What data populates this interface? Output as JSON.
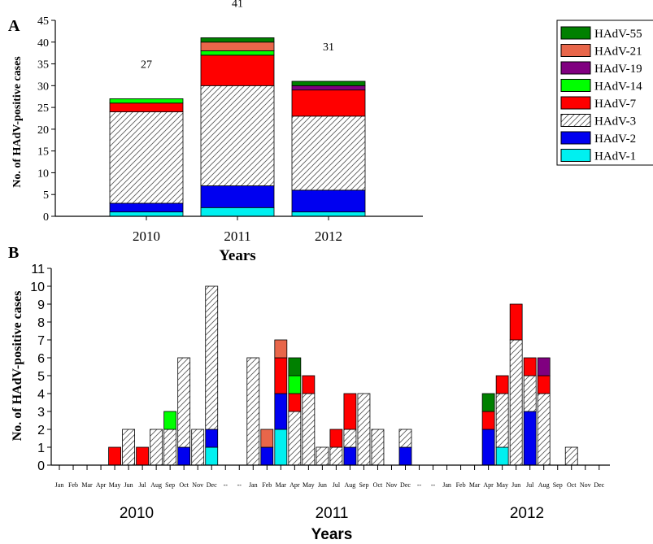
{
  "chart_data": [
    {
      "type": "bar",
      "panel_label": "A",
      "stacked": true,
      "categories": [
        "2010",
        "2011",
        "2012"
      ],
      "totals": [
        "27",
        "41",
        "31"
      ],
      "xlabel": "Years",
      "ylabel": "No. of HAdV-positive cases",
      "ylim": [
        0,
        45
      ],
      "yticks": [
        "0",
        "5",
        "10",
        "15",
        "20",
        "25",
        "30",
        "35",
        "40",
        "45"
      ],
      "legend_position": "top-right",
      "series": [
        {
          "name": "HAdV-1",
          "color": "#00f0f0",
          "values": [
            1,
            2,
            1
          ]
        },
        {
          "name": "HAdV-2",
          "color": "#0000f0",
          "values": [
            2,
            5,
            5
          ]
        },
        {
          "name": "HAdV-3",
          "color": "hatch",
          "values": [
            21,
            23,
            17
          ]
        },
        {
          "name": "HAdV-7",
          "color": "#ff0000",
          "values": [
            2,
            7,
            6
          ]
        },
        {
          "name": "HAdV-14",
          "color": "#00ff00",
          "values": [
            1,
            1,
            0
          ]
        },
        {
          "name": "HAdV-19",
          "color": "#800080",
          "values": [
            0,
            0,
            1
          ]
        },
        {
          "name": "HAdV-21",
          "color": "#e8664a",
          "values": [
            0,
            2,
            0
          ]
        },
        {
          "name": "HAdV-55",
          "color": "#008000",
          "values": [
            0,
            1,
            1
          ]
        }
      ]
    },
    {
      "type": "bar",
      "panel_label": "B",
      "stacked": true,
      "xlabel": "Years",
      "ylabel": "No. of HAdV-positive cases",
      "ylim": [
        0,
        11
      ],
      "yticks": [
        "0",
        "1",
        "2",
        "3",
        "4",
        "5",
        "6",
        "7",
        "8",
        "9",
        "10",
        "11"
      ],
      "month_labels": [
        "Jan",
        "Feb",
        "Mar",
        "Apr",
        "May",
        "Jun",
        "Jul",
        "Aug",
        "Sep",
        "Oct",
        "Nov",
        "Dec",
        "--",
        "--",
        "Jan",
        "Feb",
        "Mar",
        "Apr",
        "May",
        "Jun",
        "Jul",
        "Aug",
        "Sep",
        "Oct",
        "Nov",
        "Dec",
        "--",
        "--",
        "Jan",
        "Feb",
        "Mar",
        "Apr",
        "May",
        "Jun",
        "Jul",
        "Aug",
        "Sep",
        "Oct",
        "Nov",
        "Dec"
      ],
      "year_labels": [
        "2010",
        "2011",
        "2012"
      ],
      "series_order": [
        "HAdV-1",
        "HAdV-2",
        "HAdV-3",
        "HAdV-7",
        "HAdV-14",
        "HAdV-19",
        "HAdV-21",
        "HAdV-55"
      ],
      "months": [
        {
          "i": 4,
          "values": {
            "HAdV-7": 1
          }
        },
        {
          "i": 5,
          "values": {
            "HAdV-3": 2
          }
        },
        {
          "i": 6,
          "values": {
            "HAdV-7": 1
          }
        },
        {
          "i": 7,
          "values": {
            "HAdV-3": 2
          }
        },
        {
          "i": 8,
          "values": {
            "HAdV-3": 2,
            "HAdV-14": 1
          }
        },
        {
          "i": 9,
          "values": {
            "HAdV-2": 1,
            "HAdV-3": 5
          }
        },
        {
          "i": 10,
          "values": {
            "HAdV-3": 2
          }
        },
        {
          "i": 11,
          "values": {
            "HAdV-1": 1,
            "HAdV-2": 1,
            "HAdV-3": 8
          }
        },
        {
          "i": 14,
          "values": {
            "HAdV-3": 6
          }
        },
        {
          "i": 15,
          "values": {
            "HAdV-2": 1,
            "HAdV-21": 1
          }
        },
        {
          "i": 16,
          "values": {
            "HAdV-1": 2,
            "HAdV-2": 2,
            "HAdV-7": 2,
            "HAdV-21": 1
          }
        },
        {
          "i": 17,
          "values": {
            "HAdV-3": 3,
            "HAdV-7": 1,
            "HAdV-14": 1,
            "HAdV-55": 1
          }
        },
        {
          "i": 18,
          "values": {
            "HAdV-3": 4,
            "HAdV-7": 1
          }
        },
        {
          "i": 19,
          "values": {
            "HAdV-3": 1
          }
        },
        {
          "i": 20,
          "values": {
            "HAdV-3": 1,
            "HAdV-7": 1
          }
        },
        {
          "i": 21,
          "values": {
            "HAdV-2": 1,
            "HAdV-3": 1,
            "HAdV-7": 2
          }
        },
        {
          "i": 22,
          "values": {
            "HAdV-3": 4
          }
        },
        {
          "i": 23,
          "values": {
            "HAdV-3": 2
          }
        },
        {
          "i": 25,
          "values": {
            "HAdV-2": 1,
            "HAdV-3": 1
          }
        },
        {
          "i": 31,
          "values": {
            "HAdV-2": 2,
            "HAdV-7": 1,
            "HAdV-55": 1
          }
        },
        {
          "i": 32,
          "values": {
            "HAdV-1": 1,
            "HAdV-3": 3,
            "HAdV-7": 1
          }
        },
        {
          "i": 33,
          "values": {
            "HAdV-3": 7,
            "HAdV-7": 2
          }
        },
        {
          "i": 34,
          "values": {
            "HAdV-2": 3,
            "HAdV-3": 2,
            "HAdV-7": 1
          }
        },
        {
          "i": 35,
          "values": {
            "HAdV-3": 4,
            "HAdV-7": 1,
            "HAdV-19": 1
          }
        },
        {
          "i": 37,
          "values": {
            "HAdV-3": 1
          }
        }
      ]
    }
  ]
}
